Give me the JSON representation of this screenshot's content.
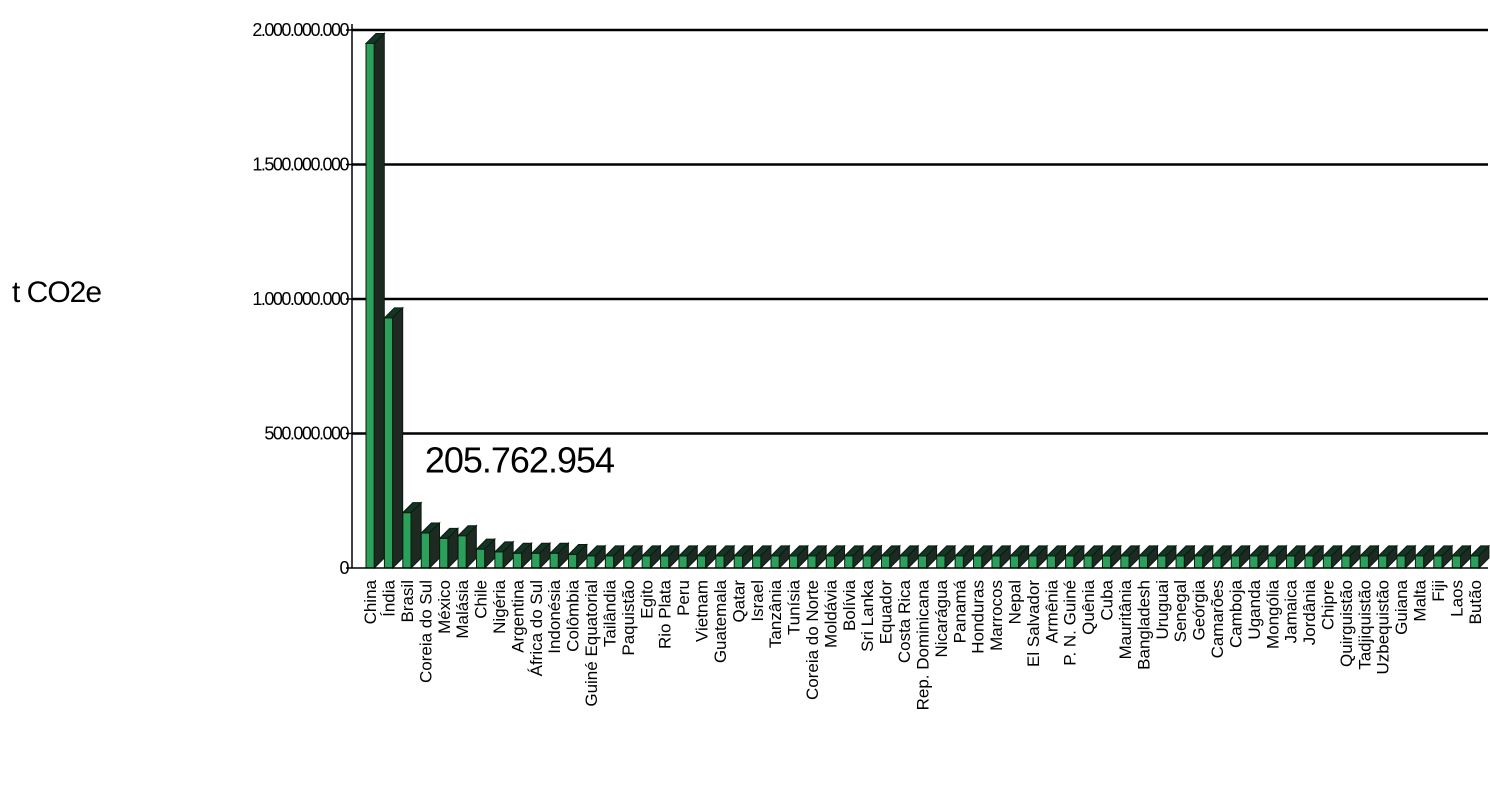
{
  "chart_data": {
    "type": "bar",
    "title": "",
    "xlabel": "",
    "ylabel": "t CO2e",
    "ylim": [
      0,
      2000000000
    ],
    "yticks": [
      0,
      500000000,
      1000000000,
      1500000000,
      2000000000
    ],
    "ytick_labels": [
      "0",
      "500.000.000",
      "1.000.000.000",
      "1.500.000.000",
      "2.000.000.000"
    ],
    "grid": true,
    "legend": "none",
    "colors": {
      "bar_front": "#2aa05a",
      "bar_top": "#123524",
      "bar_side": "#1c2a22",
      "grid": "#000000"
    },
    "annotation": {
      "text": "205.762.954",
      "category": "Brasil"
    },
    "categories": [
      "China",
      "Índia",
      "Brasil",
      "Coreia do Sul",
      "México",
      "Malásia",
      "Chile",
      "Nigéria",
      "Argentina",
      "África do Sul",
      "Indonésia",
      "Colômbia",
      "Guiné Equatorial",
      "Tailândia",
      "Paquistão",
      "Egito",
      "Rio Plata",
      "Peru",
      "Vietnam",
      "Guatemala",
      "Qatar",
      "Israel",
      "Tanzânia",
      "Tunísia",
      "Coreia do Norte",
      "Moldávia",
      "Bolívia",
      "Sri Lanka",
      "Equador",
      "Costa Rica",
      "Rep. Dominicana",
      "Nicarágua",
      "Panamá",
      "Honduras",
      "Marrocos",
      "Nepal",
      "El Salvador",
      "Armênia",
      "P. N. Guiné",
      "Quênia",
      "Cuba",
      "Mauritânia",
      "Bangladesh",
      "Uruguai",
      "Senegal",
      "Geórgia",
      "Camarões",
      "Camboja",
      "Uganda",
      "Mongólia",
      "Jamaica",
      "Jordânia",
      "Chipre",
      "Quirguistão",
      "Tadjiquistão",
      "Uzbequistão",
      "Guiana",
      "Malta",
      "Fiji",
      "Laos",
      "Butão"
    ],
    "values": [
      1950000000,
      930000000,
      205762954,
      130000000,
      110000000,
      120000000,
      70000000,
      60000000,
      55000000,
      55000000,
      55000000,
      50000000,
      45000000,
      45000000,
      45000000,
      45000000,
      45000000,
      45000000,
      45000000,
      45000000,
      45000000,
      45000000,
      45000000,
      45000000,
      45000000,
      45000000,
      45000000,
      45000000,
      45000000,
      45000000,
      45000000,
      45000000,
      45000000,
      45000000,
      45000000,
      45000000,
      45000000,
      45000000,
      45000000,
      45000000,
      45000000,
      45000000,
      45000000,
      45000000,
      45000000,
      45000000,
      45000000,
      45000000,
      45000000,
      45000000,
      45000000,
      45000000,
      45000000,
      45000000,
      45000000,
      45000000,
      45000000,
      45000000,
      45000000,
      45000000,
      45000000
    ]
  }
}
